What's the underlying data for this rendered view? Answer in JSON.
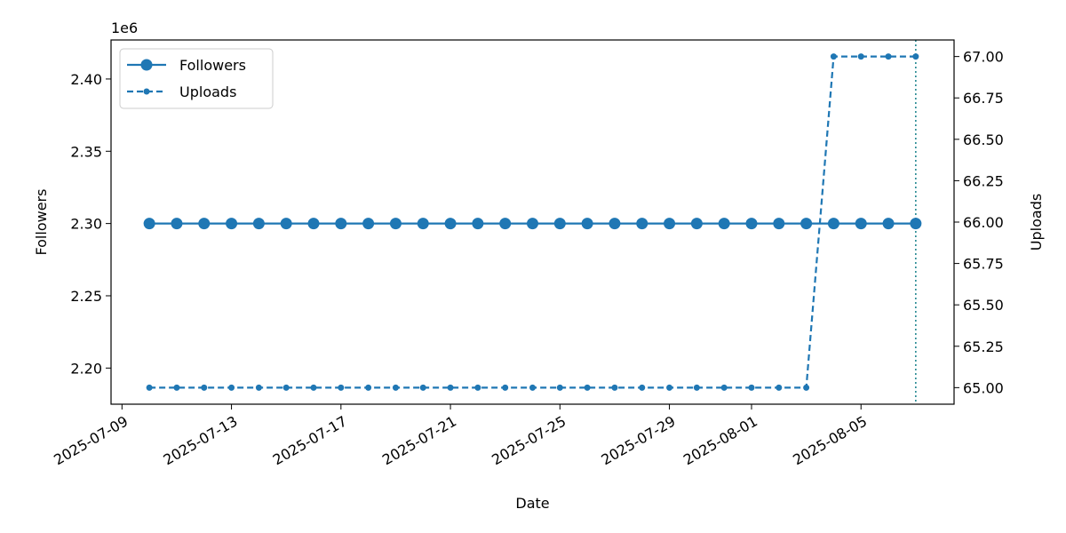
{
  "chart_data": {
    "type": "line",
    "xlabel": "Date",
    "ylabel_left": "Followers",
    "ylabel_right": "Uploads",
    "left_offset_text": "1e6",
    "x_dates": [
      "2025-07-10",
      "2025-07-11",
      "2025-07-12",
      "2025-07-13",
      "2025-07-14",
      "2025-07-15",
      "2025-07-16",
      "2025-07-17",
      "2025-07-18",
      "2025-07-19",
      "2025-07-20",
      "2025-07-21",
      "2025-07-22",
      "2025-07-23",
      "2025-07-24",
      "2025-07-25",
      "2025-07-26",
      "2025-07-27",
      "2025-07-28",
      "2025-07-29",
      "2025-07-30",
      "2025-07-31",
      "2025-08-01",
      "2025-08-02",
      "2025-08-03",
      "2025-08-04",
      "2025-08-05",
      "2025-08-06",
      "2025-08-07"
    ],
    "series": [
      {
        "name": "Followers",
        "axis": "left",
        "style": "solid",
        "marker": "large-circle",
        "values": [
          2300000,
          2300000,
          2300000,
          2300000,
          2300000,
          2300000,
          2300000,
          2300000,
          2300000,
          2300000,
          2300000,
          2300000,
          2300000,
          2300000,
          2300000,
          2300000,
          2300000,
          2300000,
          2300000,
          2300000,
          2300000,
          2300000,
          2300000,
          2300000,
          2300000,
          2300000,
          2300000,
          2300000,
          2300000
        ]
      },
      {
        "name": "Uploads",
        "axis": "right",
        "style": "dashed",
        "marker": "small-circle",
        "values": [
          65,
          65,
          65,
          65,
          65,
          65,
          65,
          65,
          65,
          65,
          65,
          65,
          65,
          65,
          65,
          65,
          65,
          65,
          65,
          65,
          65,
          65,
          65,
          65,
          65,
          67,
          67,
          67,
          67
        ]
      }
    ],
    "x_tick_labels": [
      "2025-07-09",
      "2025-07-13",
      "2025-07-17",
      "2025-07-21",
      "2025-07-25",
      "2025-07-29",
      "2025-08-01",
      "2025-08-05"
    ],
    "left_ticks": [
      2.2,
      2.25,
      2.3,
      2.35,
      2.4
    ],
    "left_tick_labels": [
      "2.20",
      "2.25",
      "2.30",
      "2.35",
      "2.40"
    ],
    "left_ylim": [
      2.175,
      2.427
    ],
    "right_ticks": [
      65.0,
      65.25,
      65.5,
      65.75,
      66.0,
      66.25,
      66.5,
      66.75,
      67.0
    ],
    "right_tick_labels": [
      "65.00",
      "65.25",
      "65.50",
      "65.75",
      "66.00",
      "66.25",
      "66.50",
      "66.75",
      "67.00"
    ],
    "right_ylim": [
      64.9,
      67.1
    ],
    "vertical_marker_date": "2025-08-07",
    "legend_position": "upper-left",
    "grid": false,
    "colors": {
      "series": "#1f77b4",
      "marker_line": "#17808a"
    }
  }
}
